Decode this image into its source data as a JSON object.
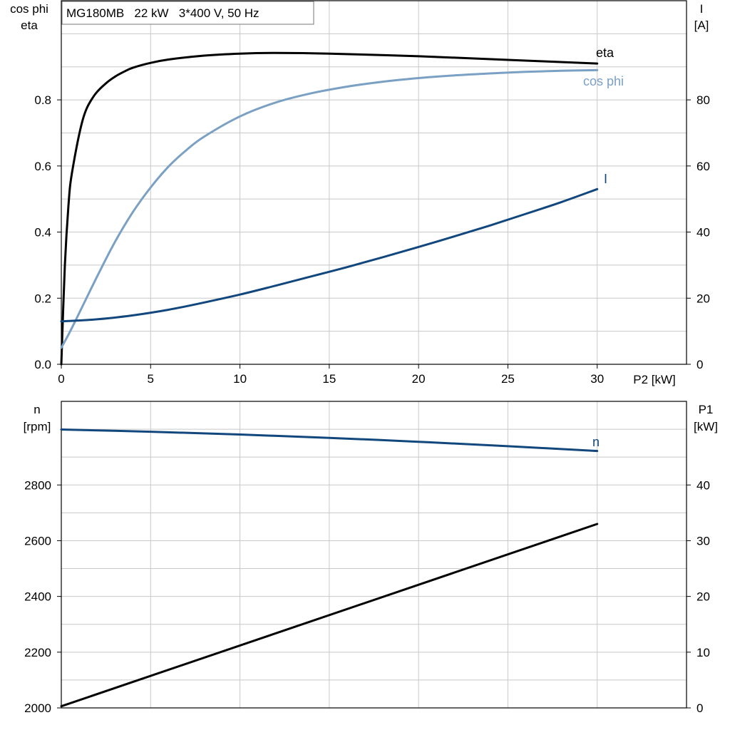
{
  "header": {
    "info": "MG180MB   22 kW   3*400 V, 50 Hz"
  },
  "colors": {
    "eta": "#000000",
    "cosphi": "#7aa0c4",
    "current": "#12477d",
    "speed": "#12477d",
    "p1": "#000000",
    "grid": "#c8c8c8"
  },
  "chart_data": [
    {
      "type": "line",
      "x_label": "P2 [kW]",
      "xlim": [
        0,
        35
      ],
      "x_ticks": [
        "0",
        "5",
        "10",
        "15",
        "20",
        "25",
        "30"
      ],
      "left_axis": {
        "label_line1": "cos phi",
        "label_line2": "eta",
        "ylim": [
          0,
          1.1
        ],
        "ticks": [
          "0.0",
          "0.2",
          "0.4",
          "0.6",
          "0.8"
        ]
      },
      "right_axis": {
        "label_line1": "I",
        "label_line2": "[A]",
        "ylim": [
          0,
          110
        ],
        "ticks": [
          "0",
          "20",
          "40",
          "60",
          "80"
        ]
      },
      "grid": true,
      "series": [
        {
          "name": "eta",
          "axis": "left",
          "x": [
            0,
            0.2,
            0.4,
            0.6,
            1.2,
            1.8,
            2.5,
            3.0,
            3.5,
            4.0,
            5.0,
            6.0,
            8.0,
            10.0,
            12.0,
            15.0,
            20.0,
            25.0,
            30.0
          ],
          "y": [
            0.0,
            0.3,
            0.48,
            0.58,
            0.74,
            0.81,
            0.85,
            0.87,
            0.885,
            0.897,
            0.912,
            0.922,
            0.934,
            0.94,
            0.942,
            0.94,
            0.932,
            0.921,
            0.91
          ]
        },
        {
          "name": "cos phi",
          "axis": "left",
          "x": [
            0,
            0.5,
            1,
            2,
            3,
            4,
            5,
            6,
            7,
            8,
            10,
            12,
            14,
            16,
            18,
            20,
            22,
            24,
            26,
            28,
            30
          ],
          "y": [
            0.05,
            0.1,
            0.155,
            0.265,
            0.37,
            0.46,
            0.535,
            0.598,
            0.648,
            0.689,
            0.75,
            0.792,
            0.82,
            0.84,
            0.855,
            0.866,
            0.874,
            0.88,
            0.885,
            0.888,
            0.89
          ]
        },
        {
          "name": "I",
          "axis": "right",
          "x": [
            0,
            2,
            4,
            6,
            8,
            10,
            12,
            14,
            16,
            18,
            20,
            22,
            24,
            26,
            28,
            30
          ],
          "y": [
            13,
            13.6,
            14.8,
            16.5,
            18.7,
            21.1,
            23.8,
            26.6,
            29.4,
            32.4,
            35.5,
            38.7,
            42.0,
            45.5,
            49.1,
            53.0
          ]
        }
      ],
      "series_labels": {
        "eta": "eta",
        "cosphi": "cos phi",
        "current": "I"
      }
    },
    {
      "type": "line",
      "xlim": [
        0,
        35
      ],
      "left_axis": {
        "label_line1": "n",
        "label_line2": "[rpm]",
        "ylim": [
          2000,
          3100
        ],
        "ticks": [
          "2000",
          "2200",
          "2400",
          "2600",
          "2800"
        ]
      },
      "right_axis": {
        "label_line1": "P1",
        "label_line2": "[kW]",
        "ylim": [
          0,
          55
        ],
        "ticks": [
          "0",
          "10",
          "20",
          "30",
          "40"
        ]
      },
      "grid": true,
      "series": [
        {
          "name": "n",
          "axis": "left",
          "x": [
            0,
            5,
            10,
            15,
            20,
            25,
            30
          ],
          "y": [
            2999,
            2991,
            2981,
            2969,
            2955,
            2939,
            2922
          ]
        },
        {
          "name": "P1",
          "axis": "right",
          "x": [
            0,
            30
          ],
          "y": [
            0.3,
            33.0
          ]
        }
      ],
      "series_labels": {
        "speed": "n"
      }
    }
  ]
}
